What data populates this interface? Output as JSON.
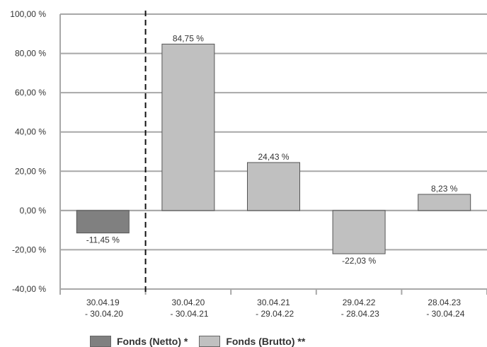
{
  "chart_data": {
    "type": "bar",
    "categories": [
      [
        "30.04.19",
        " - 30.04.20"
      ],
      [
        "30.04.20",
        " - 30.04.21"
      ],
      [
        "30.04.21",
        " - 29.04.22"
      ],
      [
        "29.04.22",
        " - 28.04.23"
      ],
      [
        "28.04.23",
        " - 30.04.24"
      ]
    ],
    "series": [
      {
        "name": "Fonds (Netto) *",
        "color": "#808080",
        "values": [
          -11.45,
          null,
          null,
          null,
          null
        ]
      },
      {
        "name": "Fonds (Brutto) **",
        "color": "#c0c0c0",
        "values": [
          null,
          84.75,
          24.43,
          -22.03,
          8.23
        ]
      }
    ],
    "data_labels": [
      "-11,45 %",
      "84,75 %",
      "24,43 %",
      "-22,03 %",
      "8,23 %"
    ],
    "ylim": [
      -40,
      100
    ],
    "yticks": [
      100,
      80,
      60,
      40,
      20,
      0,
      -20,
      -40
    ],
    "ytick_labels": [
      "100,00 %",
      "80,00 %",
      "60,00 %",
      "40,00 %",
      "20,00 %",
      "0,00 %",
      "-20,00 %",
      "-40,00 %"
    ],
    "grid": true,
    "divider_after_category": 0,
    "legend_position": "bottom",
    "title": "",
    "xlabel": "",
    "ylabel": ""
  }
}
